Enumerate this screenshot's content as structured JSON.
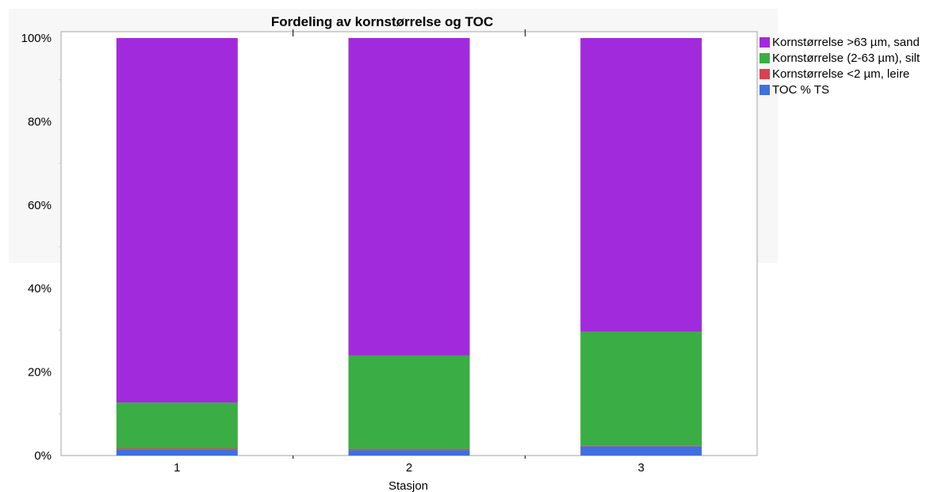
{
  "chart_data": {
    "type": "bar",
    "stacked": true,
    "percent_stacked": true,
    "title": "Fordeling av kornstørrelse og TOC",
    "xlabel": "Stasjon",
    "ylabel": "",
    "categories": [
      "1",
      "2",
      "3"
    ],
    "ylim": [
      0,
      100
    ],
    "yticks": [
      "0%",
      "20%",
      "40%",
      "60%",
      "80%",
      "100%"
    ],
    "legend_position": "right",
    "series": [
      {
        "name": "TOC % TS",
        "color": "#3f6fe0",
        "values": [
          1.4,
          1.3,
          2.2
        ]
      },
      {
        "name": "Kornstørrelse <2 µm, leire",
        "color": "#d9434f",
        "values": [
          0.3,
          0.3,
          0.1
        ]
      },
      {
        "name": "Kornstørrelse (2-63 µm), silt",
        "color": "#3aad45",
        "values": [
          11.0,
          22.4,
          27.4
        ]
      },
      {
        "name": "Kornstørrelse >63 µm, sand",
        "color": "#a12bdc",
        "values": [
          87.3,
          76.0,
          70.3
        ]
      }
    ],
    "legend_order": [
      3,
      2,
      1,
      0
    ]
  }
}
